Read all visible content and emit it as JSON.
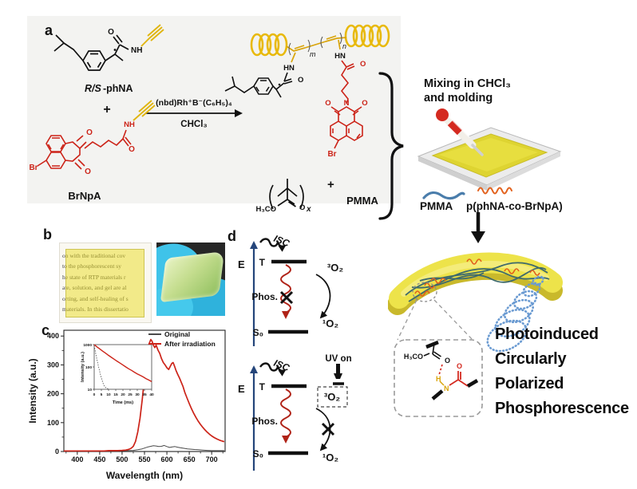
{
  "panel_a": {
    "label": "a",
    "reactant1_label_italic": "R/S",
    "reactant1_label_rest": "-phNA",
    "plus_sign": "+",
    "catalyst": "(nbd)Rh⁺B⁻(C₆H₅)₄",
    "solvent": "CHCl₃",
    "reactant2_label": "BrNpA",
    "atom_o": "O",
    "atom_nh": "NH",
    "atom_hn": "HN",
    "atom_n": "N",
    "atom_br": "Br",
    "repeat_m": "m",
    "repeat_n": "n",
    "pmma_h3co": "H₃CO",
    "pmma_x": "x",
    "plus_sign2": "+",
    "pmma_label": "PMMA"
  },
  "panel_right": {
    "mixing_line1": "Mixing in CHCl₃",
    "mixing_line2": "and molding",
    "legend_pmma": "PMMA",
    "legend_copolymer": "p(phNA-co-BrNpA)",
    "cpp_lines": [
      "Photoinduced",
      "Circularly",
      "Polarized",
      "Phosphorescence"
    ],
    "hbond_inset": {
      "h3co": "H₃CO",
      "o_ester": "O",
      "h": "H",
      "n": "N",
      "o_amide": "O"
    }
  },
  "panel_b": {
    "label": "b",
    "page_lines": [
      "on with the traditional cov",
      "to the phosphorescent sy",
      "he state of RTP materials r",
      "ate, solution, and gel are al",
      "orting, and self-healing of s",
      "materials. In this dissertatio"
    ]
  },
  "panel_c": {
    "label": "c"
  },
  "panel_d": {
    "label": "d",
    "top": {
      "e": "E",
      "isc": "ISC",
      "t": "T",
      "phos": "Phos.",
      "o2_triplet": "³O₂",
      "o2_singlet": "¹O₂",
      "s0": "S₀"
    },
    "bottom": {
      "e": "E",
      "isc": "ISC",
      "t": "T",
      "phos": "Phos.",
      "uv_on": "UV on",
      "o2_triplet": "³O₂",
      "o2_singlet": "¹O₂",
      "s0": "S₀"
    }
  },
  "chart_data": {
    "type": "line",
    "xlabel": "Wavelength (nm)",
    "ylabel": "Intensity (a.u.)",
    "xlim": [
      370,
      730
    ],
    "ylim": [
      0,
      420
    ],
    "xticks": [
      400,
      450,
      500,
      550,
      600,
      650,
      700
    ],
    "yticks": [
      0,
      100,
      200,
      300,
      400
    ],
    "legend_position": "top-right",
    "series": [
      {
        "name": "Original",
        "color": "#4a4a4a",
        "x": [
          370,
          400,
          430,
          460,
          490,
          510,
          525,
          535,
          545,
          552,
          558,
          564,
          570,
          576,
          582,
          588,
          594,
          600,
          606,
          612,
          618,
          624,
          630,
          638,
          646,
          654,
          662,
          670,
          680,
          690,
          700,
          710,
          720,
          728
        ],
        "y": [
          1,
          1,
          1,
          2,
          2,
          3,
          4,
          6,
          9,
          13,
          16,
          18,
          20,
          19,
          17,
          18,
          21,
          17,
          14,
          16,
          17,
          15,
          13,
          11,
          9,
          8,
          7,
          6,
          5,
          4,
          3,
          3,
          3,
          3
        ]
      },
      {
        "name": "After irradiation",
        "color": "#cc2318",
        "x": [
          370,
          380,
          390,
          400,
          410,
          420,
          430,
          440,
          450,
          460,
          470,
          480,
          490,
          500,
          508,
          514,
          520,
          525,
          530,
          535,
          540,
          545,
          550,
          555,
          560,
          564,
          567,
          570,
          573,
          576,
          580,
          584,
          588,
          592,
          596,
          600,
          604,
          608,
          611,
          614,
          617,
          620,
          624,
          628,
          632,
          636,
          640,
          645,
          650,
          655,
          660,
          665,
          670,
          675,
          680,
          685,
          690,
          695,
          700,
          706,
          712,
          718,
          724,
          728
        ],
        "y": [
          2,
          2,
          2,
          2,
          2,
          2,
          2,
          2,
          2,
          2,
          3,
          3,
          3,
          4,
          5,
          7,
          11,
          18,
          35,
          68,
          115,
          180,
          255,
          330,
          372,
          388,
          382,
          368,
          360,
          368,
          352,
          340,
          322,
          308,
          300,
          290,
          284,
          296,
          305,
          308,
          296,
          282,
          268,
          255,
          240,
          225,
          205,
          185,
          166,
          148,
          132,
          118,
          105,
          94,
          84,
          75,
          67,
          60,
          54,
          48,
          43,
          39,
          36,
          34
        ]
      }
    ],
    "inset": {
      "type": "line",
      "xlabel": "Time (ms)",
      "ylabel": "Intensity (a.u.)",
      "yscale": "log",
      "xlim": [
        0,
        40
      ],
      "ylim": [
        10,
        1000
      ],
      "xticks": [
        0,
        5,
        10,
        15,
        20,
        25,
        30,
        35,
        40
      ],
      "yticks": [
        10,
        100,
        1000
      ],
      "series": [
        {
          "name": "Original",
          "color": "#4a4a4a",
          "x": [
            0,
            0.5,
            1,
            1.5,
            2,
            2.5,
            3,
            3.5,
            4,
            4.5,
            5,
            6,
            7,
            8,
            9,
            10
          ],
          "y": [
            900,
            610,
            420,
            290,
            205,
            145,
            105,
            76,
            56,
            42,
            32,
            20,
            14,
            12,
            11,
            10
          ]
        },
        {
          "name": "After irradiation",
          "color": "#cc2318",
          "x": [
            0,
            2,
            4,
            6,
            8,
            10,
            12,
            14,
            16,
            18,
            20,
            22,
            24,
            26,
            28,
            30,
            32,
            34,
            36,
            38,
            40
          ],
          "y": [
            1000,
            790,
            630,
            505,
            410,
            330,
            268,
            220,
            180,
            148,
            122,
            100,
            83,
            70,
            58,
            49,
            42,
            36,
            30,
            26,
            22
          ]
        }
      ]
    }
  }
}
